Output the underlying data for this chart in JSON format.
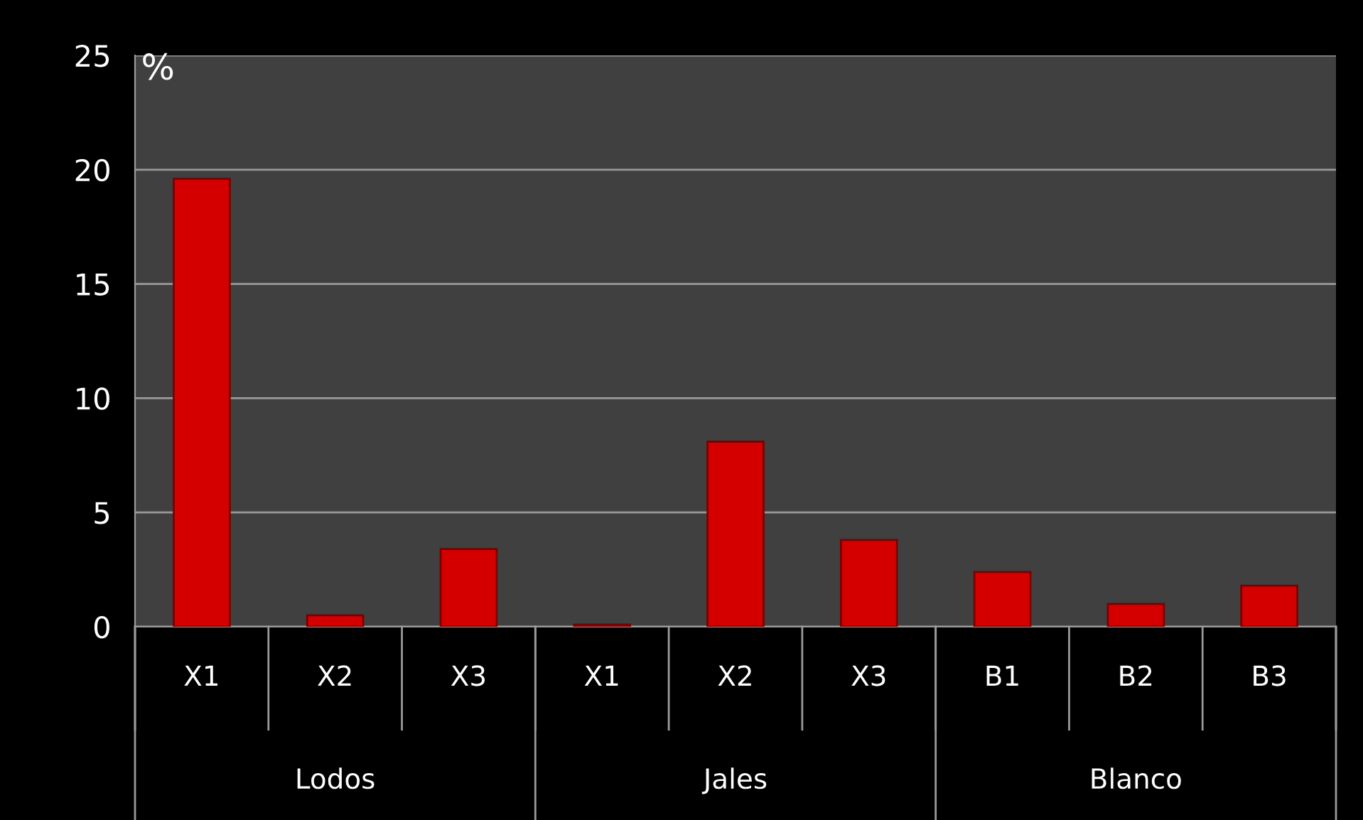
{
  "chart_data": {
    "type": "bar",
    "ylabel": "%",
    "categories": [
      "X1",
      "X2",
      "X3",
      "X1",
      "X2",
      "X3",
      "B1",
      "B2",
      "B3"
    ],
    "values": [
      19.6,
      0.5,
      3.4,
      0.1,
      8.1,
      3.8,
      2.4,
      1.0,
      1.8
    ],
    "color": "#d40000",
    "ylim": [
      0,
      25
    ],
    "yticks": [
      0,
      5,
      10,
      15,
      20,
      25
    ],
    "grid": "y",
    "annotations": [
      "Lodos",
      "Jales",
      "Blanco"
    ]
  }
}
